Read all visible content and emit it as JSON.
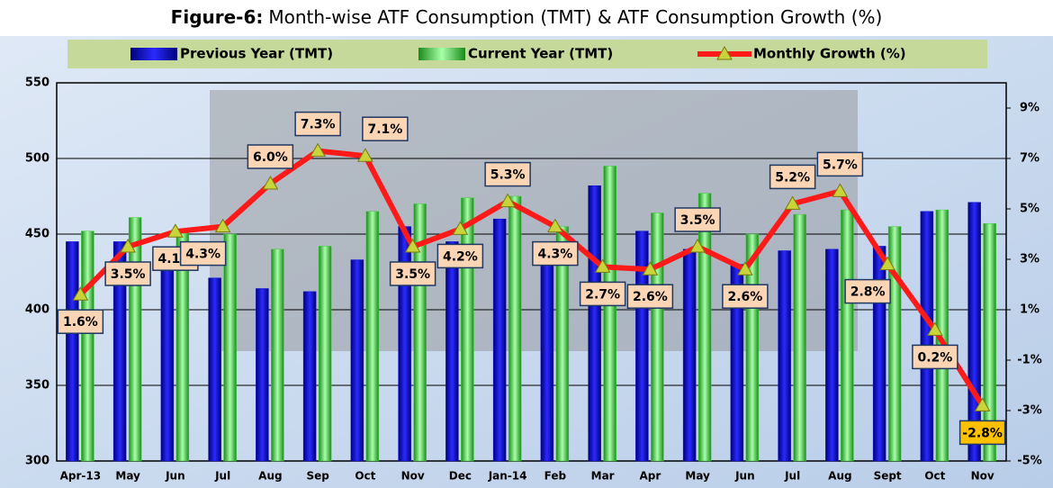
{
  "chart_data": {
    "type": "bar-line",
    "figure_label": "Figure-6:",
    "title": "Month-wise ATF Consumption (TMT) & ATF Consumption Growth (%)",
    "categories": [
      "Apr-13",
      "May",
      "Jun",
      "Jul",
      "Aug",
      "Sep",
      "Oct",
      "Nov",
      "Dec",
      "Jan-14",
      "Feb",
      "Mar",
      "Apr",
      "May",
      "Jun",
      "Jul",
      "Aug",
      "Sept",
      "Oct",
      "Nov"
    ],
    "series": [
      {
        "name": "Previous Year (TMT)",
        "color": "#1010d8",
        "type": "bar",
        "values": [
          445,
          445,
          430,
          421,
          414,
          412,
          433,
          455,
          445,
          460,
          441,
          482,
          452,
          440,
          430,
          439,
          440,
          442,
          465,
          471
        ]
      },
      {
        "name": "Current Year (TMT)",
        "color": "#3fcf3f",
        "type": "bar",
        "values": [
          452,
          461,
          452,
          450,
          440,
          442,
          465,
          470,
          474,
          475,
          455,
          495,
          464,
          477,
          450,
          463,
          466,
          455,
          466,
          457
        ]
      },
      {
        "name": "Monthly Growth (%)",
        "color": "#ff1a1a",
        "type": "line",
        "axis": "y2",
        "values": [
          1.6,
          3.5,
          4.1,
          4.3,
          6.0,
          7.3,
          7.1,
          3.5,
          4.2,
          5.3,
          4.3,
          2.7,
          2.6,
          3.5,
          2.6,
          5.2,
          5.7,
          2.8,
          0.2,
          -2.8
        ],
        "value_labels": [
          "1.6%",
          "3.5%",
          "4.1%",
          "4.3%",
          "6.0%",
          "7.3%",
          "7.1%",
          "3.5%",
          "4.2%",
          "5.3%",
          "4.3%",
          "2.7%",
          "2.6%",
          "3.5%",
          "2.6%",
          "5.2%",
          "5.7%",
          "2.8%",
          "0.2%",
          "-2.8%"
        ]
      }
    ],
    "ylim": [
      300,
      550
    ],
    "yticks": [
      300,
      350,
      400,
      450,
      500,
      550
    ],
    "y2lim": [
      -5,
      10
    ],
    "y2ticks": [
      {
        "value": -5,
        "label": "-5%"
      },
      {
        "value": -3,
        "label": "-3%"
      },
      {
        "value": -1,
        "label": "-1%"
      },
      {
        "value": 1,
        "label": "1%"
      },
      {
        "value": 3,
        "label": "3%"
      },
      {
        "value": 5,
        "label": "5%"
      },
      {
        "value": 7,
        "label": "7%"
      },
      {
        "value": 9,
        "label": "9%"
      }
    ],
    "grid": true,
    "legend": "top"
  }
}
